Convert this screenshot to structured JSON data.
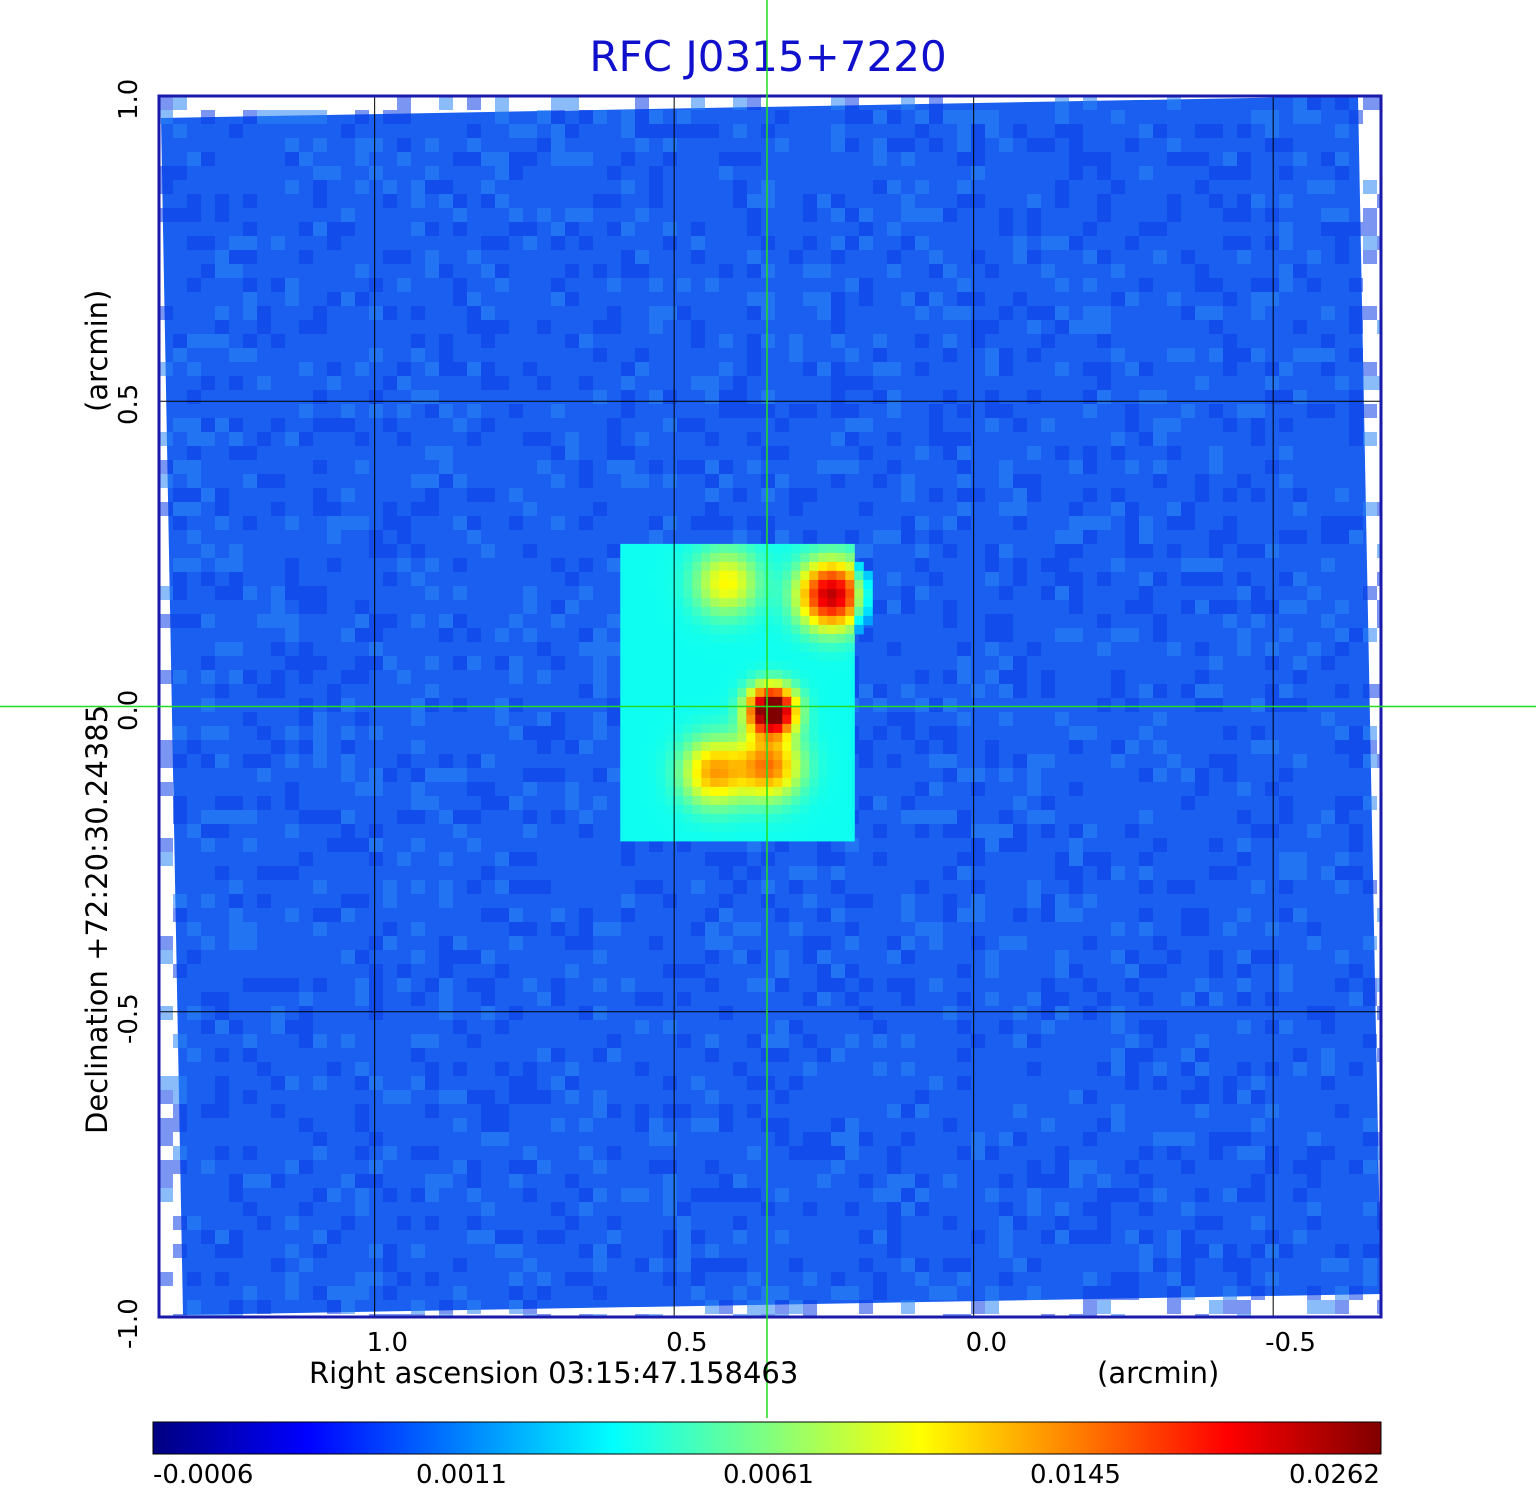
{
  "title": "RFC J0315+7220",
  "colors": {
    "title": "#1010cc",
    "frame": "#1a1aaa",
    "grid": "#000000",
    "crosshair": "#22dd22",
    "colormap": [
      "#000080",
      "#0000ff",
      "#0080ff",
      "#00ffff",
      "#80ff80",
      "#ffff00",
      "#ff8000",
      "#ff0000",
      "#800000"
    ]
  },
  "chart_data": {
    "type": "heatmap",
    "title": "RFC J0315+7220",
    "xlabel": "Right ascension  03:15:47.158463",
    "xunit": "(arcmin)",
    "ylabel": "Declination  +72:20:30.24385",
    "yunit": "(arcmin)",
    "x_ticks": [
      "1.0",
      "0.5",
      "0.0",
      "-0.5"
    ],
    "x_tick_values": [
      1.0,
      0.5,
      0.0,
      -0.5
    ],
    "y_ticks": [
      "1.0",
      "0.5",
      "0.0",
      "-0.5",
      "-1.0"
    ],
    "y_tick_values": [
      1.0,
      0.5,
      0.0,
      -0.5,
      -1.0
    ],
    "xlim": [
      1.36,
      -0.68
    ],
    "ylim": [
      -1.0,
      1.0
    ],
    "grid": true,
    "crosshair": [
      0.345,
      0.0
    ],
    "colorbar": {
      "ticks": [
        "-0.0006",
        "0.0011",
        "0.0061",
        "0.0145",
        "0.0262"
      ],
      "tick_values": [
        -0.0006,
        0.0011,
        0.0061,
        0.0145,
        0.0262
      ],
      "placement": "bottom"
    },
    "sources": [
      {
        "x": 0.345,
        "y": 0.0,
        "peak": 0.0262
      },
      {
        "x": 0.245,
        "y": 0.19,
        "peak": 0.0175
      },
      {
        "x": 0.35,
        "y": -0.09,
        "peak": 0.0105
      },
      {
        "x": 0.44,
        "y": -0.1,
        "peak": 0.009
      },
      {
        "x": 0.42,
        "y": 0.21,
        "peak": 0.0062
      }
    ]
  }
}
